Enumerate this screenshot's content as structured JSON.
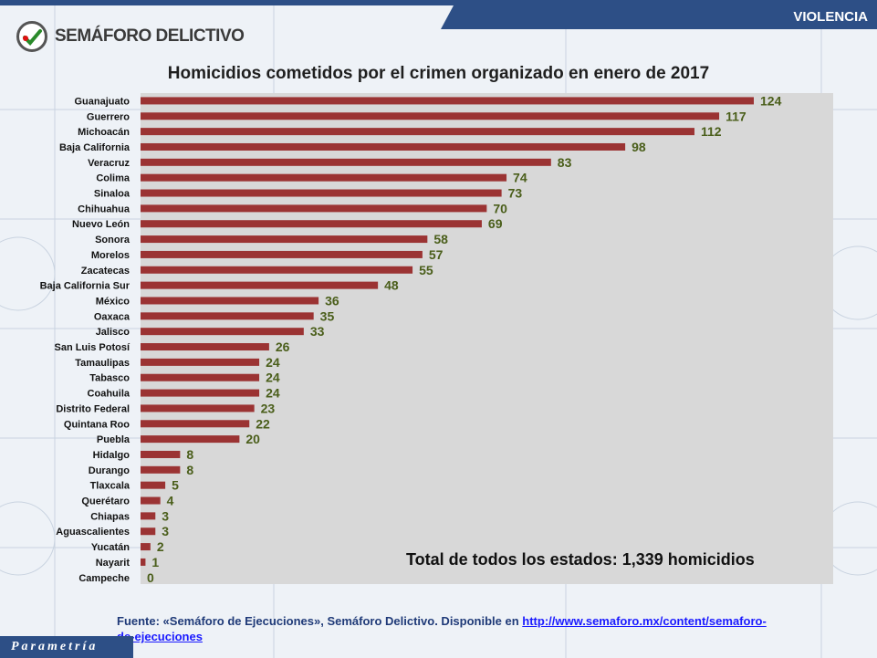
{
  "header": {
    "section_label": "VIOLENCIA",
    "brand_name": "SEMÁFORO DELICTIVO"
  },
  "footer": {
    "source_prefix": "Fuente: «Semáforo de Ejecuciones», Semáforo Delictivo. Disponible en ",
    "source_link": "http://www.semaforo.mx/content/semaforo-de-ejecuciones",
    "brand": "Parametría"
  },
  "chart_data": {
    "type": "bar",
    "orientation": "horizontal",
    "title": "Homicidios cometidos por el crimen organizado en enero de 2017",
    "categories": [
      "Guanajuato",
      "Guerrero",
      "Michoacán",
      "Baja California",
      "Veracruz",
      "Colima",
      "Sinaloa",
      "Chihuahua",
      "Nuevo León",
      "Sonora",
      "Morelos",
      "Zacatecas",
      "Baja California Sur",
      "México",
      "Oaxaca",
      "Jalisco",
      "San Luis Potosí",
      "Tamaulipas",
      "Tabasco",
      "Coahuila",
      "Distrito Federal",
      "Quintana Roo",
      "Puebla",
      "Hidalgo",
      "Durango",
      "Tlaxcala",
      "Querétaro",
      "Chiapas",
      "Aguascalientes",
      "Yucatán",
      "Nayarit",
      "Campeche"
    ],
    "values": [
      124,
      117,
      112,
      98,
      83,
      74,
      73,
      70,
      69,
      58,
      57,
      55,
      48,
      36,
      35,
      33,
      26,
      24,
      24,
      24,
      23,
      22,
      20,
      8,
      8,
      5,
      4,
      3,
      3,
      2,
      1,
      0
    ],
    "xlim": [
      0,
      140
    ],
    "annotation": "Total de todos los estados: 1,339 homicidios",
    "bar_color": "#9b3333",
    "value_label_color": "#4a5e1a",
    "plot_background": "#d8d8d8",
    "grid": false,
    "legend": "none"
  }
}
